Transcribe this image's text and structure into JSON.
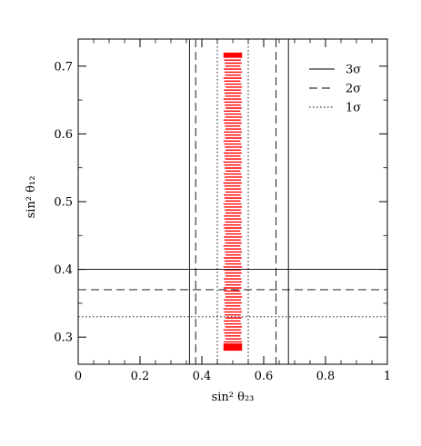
{
  "chart_data": {
    "type": "scatter",
    "title": "",
    "xlabel": "sin² θ₂₃",
    "ylabel": "sin² θ₁₂",
    "xlim": [
      0,
      1
    ],
    "ylim": [
      0.26,
      0.74
    ],
    "xticks": [
      0,
      0.2,
      0.4,
      0.6,
      0.8,
      1
    ],
    "xtick_labels": [
      "0",
      "0.2",
      "0.4",
      "0.6",
      "0.8",
      "1"
    ],
    "yticks": [
      0.3,
      0.4,
      0.5,
      0.6,
      0.7
    ],
    "ytick_labels": [
      "0.3",
      "0.4",
      "0.5",
      "0.6",
      "0.7"
    ],
    "grid": false,
    "legend_placement": "top-right",
    "legend": [
      {
        "label": "3σ",
        "style": "solid"
      },
      {
        "label": "2σ",
        "style": "dashed"
      },
      {
        "label": "1σ",
        "style": "dotted"
      }
    ],
    "bounds": [
      {
        "level": "3σ",
        "style": "solid",
        "x": [
          0.36,
          0.68
        ],
        "y": 0.4
      },
      {
        "level": "2σ",
        "style": "dashed",
        "x": [
          0.38,
          0.64
        ],
        "y": 0.37
      },
      {
        "level": "1σ",
        "style": "dotted",
        "x": [
          0.45,
          0.55
        ],
        "y": 0.33
      }
    ],
    "scatter": {
      "color": "#ff0000",
      "x_range": [
        0.47,
        0.53
      ],
      "y_range": [
        0.28,
        0.72
      ]
    }
  }
}
